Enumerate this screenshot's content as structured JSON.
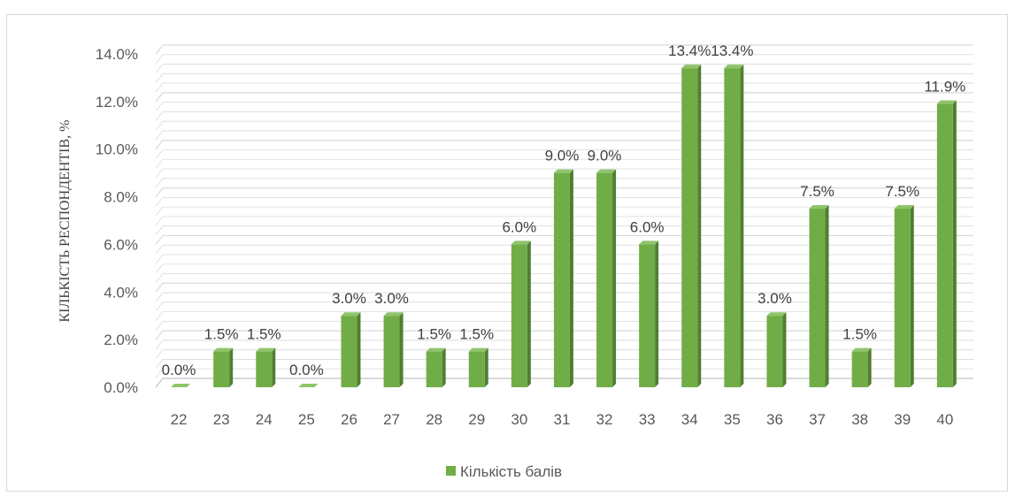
{
  "chart_data": {
    "type": "bar",
    "categories": [
      "22",
      "23",
      "24",
      "25",
      "26",
      "27",
      "28",
      "29",
      "30",
      "31",
      "32",
      "33",
      "34",
      "35",
      "36",
      "37",
      "38",
      "39",
      "40"
    ],
    "series": [
      {
        "name": "Кількість балів",
        "values": [
          0.0,
          1.5,
          1.5,
          0.0,
          3.0,
          3.0,
          1.5,
          1.5,
          6.0,
          9.0,
          9.0,
          6.0,
          13.4,
          13.4,
          3.0,
          7.5,
          1.5,
          7.5,
          11.9
        ]
      }
    ],
    "data_labels": [
      "0.0%",
      "1.5%",
      "1.5%",
      "0.0%",
      "3.0%",
      "3.0%",
      "1.5%",
      "1.5%",
      "6.0%",
      "9.0%",
      "9.0%",
      "6.0%",
      "13.4%",
      "13.4%",
      "3.0%",
      "7.5%",
      "1.5%",
      "7.5%",
      "11.9%"
    ],
    "y_ticks": [
      "0.0%",
      "2.0%",
      "4.0%",
      "6.0%",
      "8.0%",
      "10.0%",
      "12.0%",
      "14.0%"
    ],
    "ylabel": "КІЛЬКІСТЬ РЕСПОНДЕНТІВ, %",
    "xlabel": "",
    "ylim": [
      0,
      14
    ],
    "y_unit": "%",
    "grid": true,
    "style": "3d-bar",
    "legend_position": "bottom",
    "colors": {
      "bar_front": "#70ad47",
      "bar_side": "#507e32",
      "bar_top": "#8fc46b",
      "grid": "#d9d9d9"
    }
  }
}
